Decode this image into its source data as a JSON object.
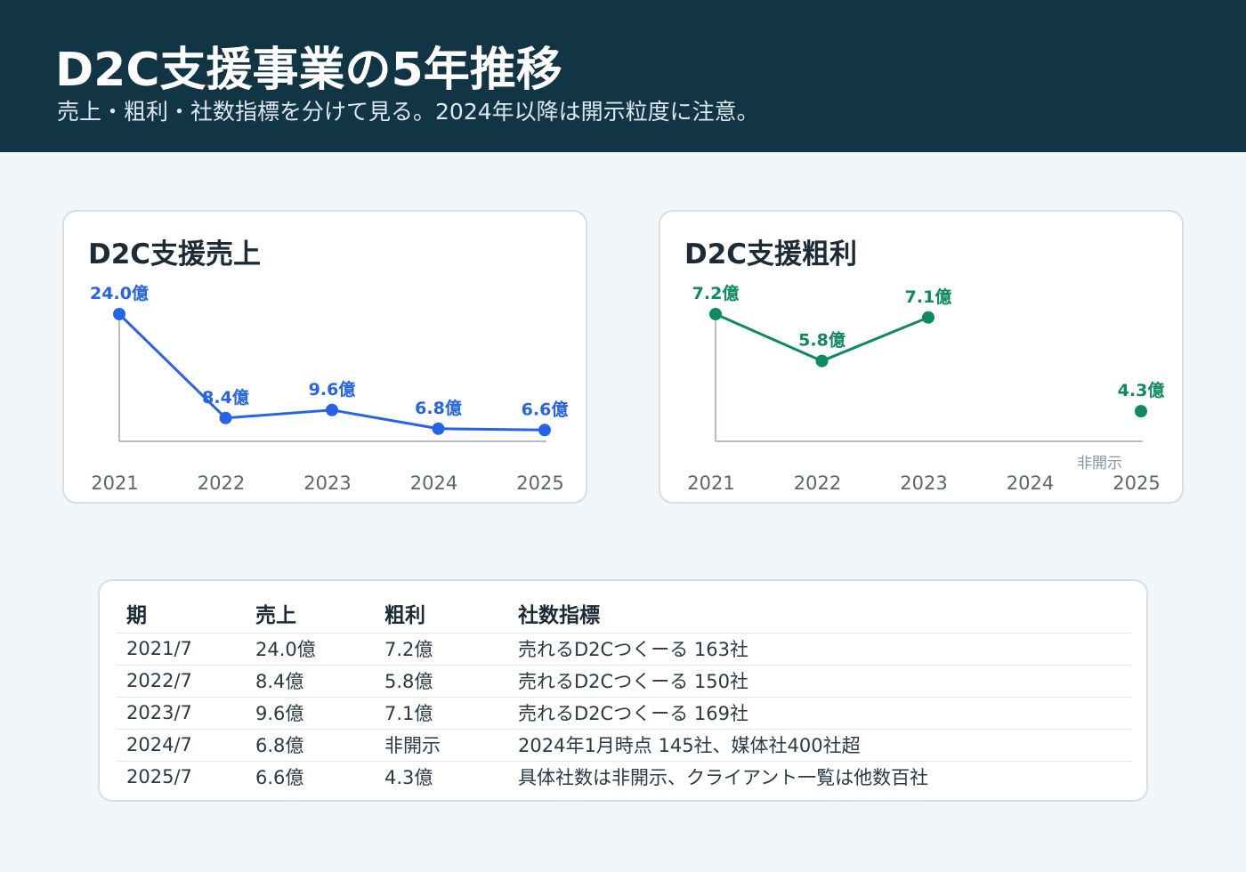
{
  "header": {
    "title": "D2C支援事業の5年推移",
    "subtitle": "売上・粗利・社数指標を分けて見る。2024年以降は開示粒度に注意。"
  },
  "colors": {
    "header_bg": "#123545",
    "sales_line": "#2563eb",
    "profit_line": "#0e8a5f",
    "axis": "#b5bec6",
    "tick_text": "#5b6770",
    "na_text": "#8a949c"
  },
  "chart_data": [
    {
      "type": "line",
      "title": "D2C支援売上",
      "x": [
        "2021",
        "2022",
        "2023",
        "2024",
        "2025"
      ],
      "series": [
        {
          "values": [
            24.0,
            8.4,
            9.6,
            6.8,
            6.6
          ],
          "labels": [
            "24.0億",
            "8.4億",
            "9.6億",
            "6.8億",
            "6.6億"
          ]
        }
      ],
      "xlabel": "",
      "ylabel": "",
      "ylim": [
        4.9,
        24.0
      ],
      "grid": false
    },
    {
      "type": "line",
      "title": "D2C支援粗利",
      "x": [
        "2021",
        "2022",
        "2023",
        "2024",
        "2025"
      ],
      "series": [
        {
          "values": [
            7.2,
            5.8,
            7.1,
            null,
            4.3
          ],
          "labels": [
            "7.2億",
            "5.8億",
            "7.1億",
            "",
            "4.3億"
          ]
        }
      ],
      "annotations": [
        {
          "x": "2024",
          "text": "非開示"
        }
      ],
      "xlabel": "",
      "ylabel": "",
      "ylim": [
        3.4,
        7.2
      ],
      "grid": false
    }
  ],
  "table": {
    "headers": [
      "期",
      "売上",
      "粗利",
      "社数指標"
    ],
    "rows": [
      [
        "2021/7",
        "24.0億",
        "7.2億",
        "売れるD2Cつくーる 163社"
      ],
      [
        "2022/7",
        "8.4億",
        "5.8億",
        "売れるD2Cつくーる 150社"
      ],
      [
        "2023/7",
        "9.6億",
        "7.1億",
        "売れるD2Cつくーる 169社"
      ],
      [
        "2024/7",
        "6.8億",
        "非開示",
        "2024年1月時点 145社、媒体社400社超"
      ],
      [
        "2025/7",
        "6.6億",
        "4.3億",
        "具体社数は非開示、クライアント一覧は他数百社"
      ]
    ]
  }
}
